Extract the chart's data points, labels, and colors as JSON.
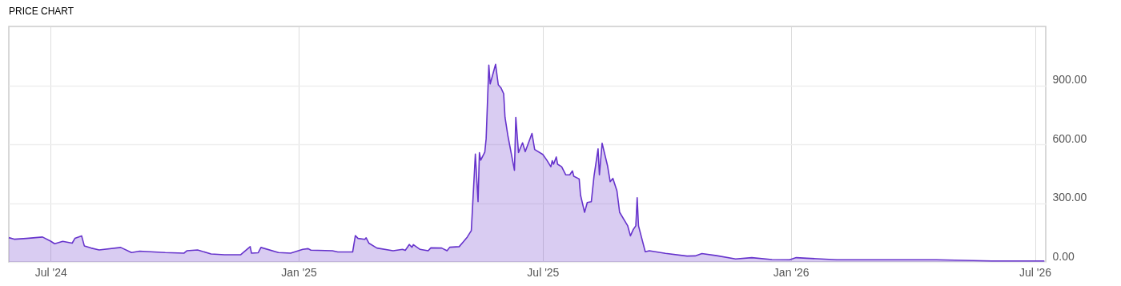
{
  "chart_data": {
    "type": "area",
    "title": "PRICE CHART",
    "x": [
      "2024-05-31",
      "2024-06-04",
      "2024-06-13",
      "2024-06-25",
      "2024-07-01",
      "2024-07-04",
      "2024-07-10",
      "2024-07-17",
      "2024-07-19",
      "2024-07-24",
      "2024-07-26",
      "2024-07-31",
      "2024-08-06",
      "2024-08-22",
      "2024-08-30",
      "2024-09-05",
      "2024-09-24",
      "2024-10-08",
      "2024-10-10",
      "2024-10-18",
      "2024-10-28",
      "2024-11-07",
      "2024-11-19",
      "2024-11-26",
      "2024-11-27",
      "2024-12-02",
      "2024-12-04",
      "2024-12-17",
      "2024-12-26",
      "2025-01-04",
      "2025-01-08",
      "2025-01-10",
      "2025-01-26",
      "2025-01-30",
      "2025-02-10",
      "2025-02-12",
      "2025-02-14",
      "2025-02-19",
      "2025-02-20",
      "2025-02-22",
      "2025-02-27",
      "2025-02-28",
      "2025-03-12",
      "2025-03-19",
      "2025-03-21",
      "2025-03-24",
      "2025-03-26",
      "2025-03-27",
      "2025-04-01",
      "2025-04-07",
      "2025-04-09",
      "2025-04-17",
      "2025-04-21",
      "2025-04-23",
      "2025-04-30",
      "2025-05-03",
      "2025-05-06",
      "2025-05-09",
      "2025-05-12",
      "2025-05-14",
      "2025-05-15",
      "2025-05-16",
      "2025-05-19",
      "2025-05-20",
      "2025-05-22",
      "2025-05-23",
      "2025-05-27",
      "2025-05-29",
      "2025-05-31",
      "2025-06-02",
      "2025-06-03",
      "2025-06-05",
      "2025-06-10",
      "2025-06-11",
      "2025-06-13",
      "2025-06-16",
      "2025-06-18",
      "2025-06-23",
      "2025-06-25",
      "2025-07-01",
      "2025-07-04",
      "2025-07-07",
      "2025-07-08",
      "2025-07-09",
      "2025-07-11",
      "2025-07-12",
      "2025-07-15",
      "2025-07-18",
      "2025-07-21",
      "2025-07-23",
      "2025-07-24",
      "2025-07-28",
      "2025-07-29",
      "2025-08-01",
      "2025-08-03",
      "2025-08-06",
      "2025-08-08",
      "2025-08-11",
      "2025-08-12",
      "2025-08-14",
      "2025-08-18",
      "2025-08-20",
      "2025-08-22",
      "2025-08-25",
      "2025-08-27",
      "2025-09-02",
      "2025-09-04",
      "2025-09-06",
      "2025-09-08",
      "2025-09-09",
      "2025-09-10",
      "2025-09-15",
      "2025-09-18",
      "2025-09-30",
      "2025-10-16",
      "2025-10-22",
      "2025-10-27",
      "2025-11-07",
      "2025-11-21",
      "2025-12-03",
      "2025-12-18",
      "2025-12-31",
      "2026-01-05",
      "2026-01-13",
      "2026-02-04",
      "2026-03-09",
      "2026-04-19",
      "2026-05-30",
      "2026-07-08"
    ],
    "series": [
      {
        "color": "#6633cc",
        "values": [
          124,
          116,
          120,
          127,
          106,
          93,
          105,
          96,
          120,
          133,
          82,
          71,
          61,
          74,
          48,
          55,
          48,
          45,
          57,
          61,
          41,
          37,
          37,
          78,
          45,
          47,
          74,
          48,
          45,
          64,
          68,
          60,
          57,
          51,
          51,
          134,
          120,
          115,
          123,
          96,
          75,
          71,
          57,
          64,
          59,
          89,
          75,
          88,
          64,
          57,
          72,
          71,
          57,
          75,
          78,
          102,
          127,
          160,
          550,
          307,
          557,
          519,
          560,
          628,
          1003,
          907,
          1007,
          903,
          887,
          857,
          737,
          648,
          467,
          737,
          557,
          607,
          562,
          655,
          573,
          548,
          519,
          485,
          516,
          498,
          535,
          498,
          485,
          444,
          444,
          464,
          437,
          423,
          341,
          253,
          303,
          307,
          437,
          576,
          444,
          605,
          491,
          409,
          426,
          362,
          253,
          184,
          133,
          164,
          184,
          327,
          184,
          52,
          57,
          44,
          30,
          31,
          43,
          32,
          15,
          22,
          12,
          11,
          22,
          19,
          11,
          11,
          11,
          5,
          5
        ]
      }
    ],
    "xlim": [
      "2024-05-31",
      "2026-07-09"
    ],
    "xticks": [
      {
        "value": "2024-07-01",
        "label": "Jul '24"
      },
      {
        "value": "2025-01-01",
        "label": "Jan '25"
      },
      {
        "value": "2025-07-01",
        "label": "Jul '25"
      },
      {
        "value": "2026-01-01",
        "label": "Jan '26"
      },
      {
        "value": "2026-07-01",
        "label": "Jul '26"
      }
    ],
    "ylim": [
      0,
      1200
    ],
    "yticks": [
      {
        "value": 0,
        "label": "0.00"
      },
      {
        "value": 300,
        "label": "300.00"
      },
      {
        "value": 600,
        "label": "600.00"
      },
      {
        "value": 900,
        "label": "900.00"
      }
    ],
    "grid": true
  }
}
